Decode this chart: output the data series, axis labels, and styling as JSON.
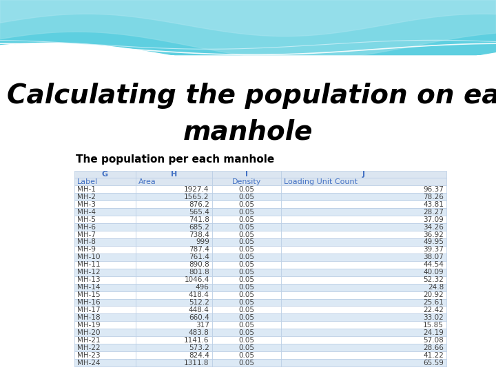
{
  "title_line1": "Calculating the population on each",
  "title_line2": "manhole",
  "subtitle": "The population per each manhole",
  "col_headers_row1": [
    "G",
    "H",
    "I",
    "J"
  ],
  "col_headers_row2": [
    "Label",
    "Area",
    "Density",
    "Loading Unit Count"
  ],
  "rows": [
    [
      "MH-1",
      "1927.4",
      "0.05",
      "96.37"
    ],
    [
      "MH-2",
      "1565.2",
      "0.05",
      "78.26"
    ],
    [
      "MH-3",
      "876.2",
      "0.05",
      "43.81"
    ],
    [
      "MH-4",
      "565.4",
      "0.05",
      "28.27"
    ],
    [
      "MH-5",
      "741.8",
      "0.05",
      "37.09"
    ],
    [
      "MH-6",
      "685.2",
      "0.05",
      "34.26"
    ],
    [
      "MH-7",
      "738.4",
      "0.05",
      "36.92"
    ],
    [
      "MH-8",
      "999",
      "0.05",
      "49.95"
    ],
    [
      "MH-9",
      "787.4",
      "0.05",
      "39.37"
    ],
    [
      "MH-10",
      "761.4",
      "0.05",
      "38.07"
    ],
    [
      "MH-11",
      "890.8",
      "0.05",
      "44.54"
    ],
    [
      "MH-12",
      "801.8",
      "0.05",
      "40.09"
    ],
    [
      "MH-13",
      "1046.4",
      "0.05",
      "52.32"
    ],
    [
      "MH-14",
      "496",
      "0.05",
      "24.8"
    ],
    [
      "MH-15",
      "418.4",
      "0.05",
      "20.92"
    ],
    [
      "MH-16",
      "512.2",
      "0.05",
      "25.61"
    ],
    [
      "MH-17",
      "448.4",
      "0.05",
      "22.42"
    ],
    [
      "MH-18",
      "660.4",
      "0.05",
      "33.02"
    ],
    [
      "MH-19",
      "317",
      "0.05",
      "15.85"
    ],
    [
      "MH-20",
      "483.8",
      "0.05",
      "24.19"
    ],
    [
      "MH-21",
      "1141.6",
      "0.05",
      "57.08"
    ],
    [
      "MH-22",
      "573.2",
      "0.05",
      "28.66"
    ],
    [
      "MH-23",
      "824.4",
      "0.05",
      "41.22"
    ],
    [
      "MH-24",
      "1311.8",
      "0.05",
      "65.59"
    ]
  ],
  "bg_color": "#ffffff",
  "header_bg": "#dce6f1",
  "row_bg_odd": "#ffffff",
  "row_bg_even": "#dce9f5",
  "header_text_color": "#4472c4",
  "cell_text_color": "#404040",
  "grid_color": "#b8cce4",
  "title_color": "#000000",
  "subtitle_color": "#000000"
}
